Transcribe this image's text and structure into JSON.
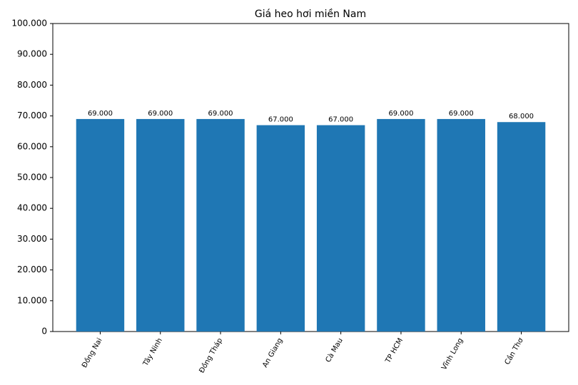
{
  "chart_data": {
    "type": "bar",
    "title": "Giá heo hơi miền Nam",
    "categories": [
      "Đồng Nai",
      "Tây Ninh",
      "Đồng Tháp",
      "An Giang",
      "Cà Mau",
      "TP HCM",
      "Vĩnh Long",
      "Cần Thơ"
    ],
    "values": [
      69000,
      69000,
      69000,
      67000,
      67000,
      69000,
      69000,
      68000
    ],
    "value_labels": [
      "69.000",
      "69.000",
      "69.000",
      "67.000",
      "67.000",
      "69.000",
      "69.000",
      "68.000"
    ],
    "color": "#1f77b4",
    "ylim": [
      0,
      100000
    ],
    "yticks": [
      0,
      {
        "value": 10000,
        "label": "10.000"
      },
      {
        "value": 20000,
        "label": "20.000"
      },
      {
        "value": 30000,
        "label": "30.000"
      },
      {
        "value": 40000,
        "label": "40.000"
      },
      {
        "value": 50000,
        "label": "50.000"
      },
      {
        "value": 60000,
        "label": "60.000"
      },
      {
        "value": 70000,
        "label": "70.000"
      },
      {
        "value": 80000,
        "label": "80.000"
      },
      {
        "value": 90000,
        "label": "90.000"
      },
      {
        "value": 100000,
        "label": "100.000"
      }
    ],
    "grid": false
  }
}
